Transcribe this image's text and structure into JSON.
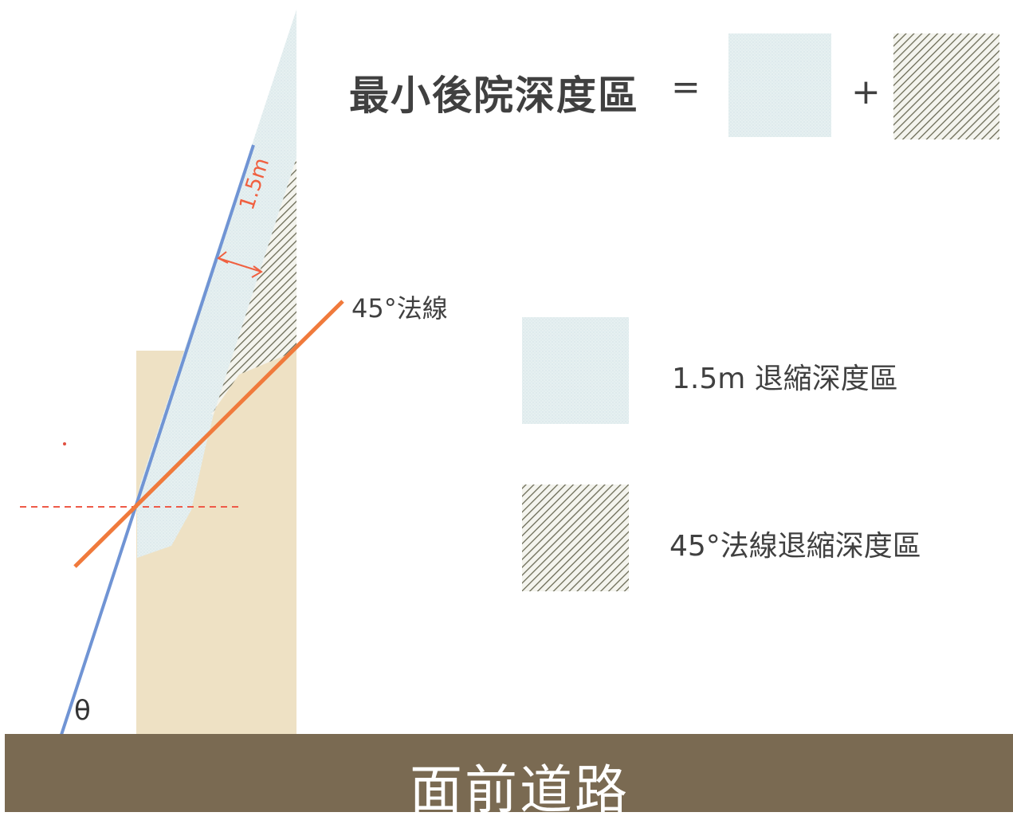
{
  "title": "最小後院深度區",
  "equals": "=",
  "plus": "+",
  "normal_line_label": "45°法線",
  "dimension_label": "1.5m",
  "angle_label": "θ",
  "legend": {
    "item1_label": "1.5m 退縮深度區",
    "item2_label": "45°法線退縮深度區"
  },
  "road_label": "面前道路",
  "colors": {
    "road": "#7a6a52",
    "building": "#eee1c4",
    "setback_zone": "#e6f0f1",
    "hatch": "#6b6b56",
    "sloped_line": "#7094d4",
    "normal_line": "#f07a3c",
    "dimension": "#f06040"
  }
}
